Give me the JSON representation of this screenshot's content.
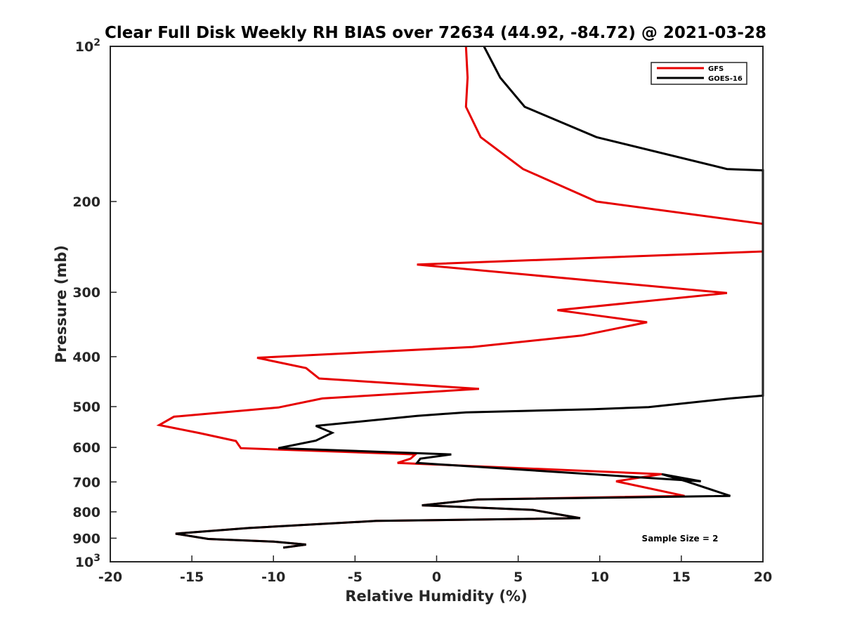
{
  "chart_data": {
    "type": "line",
    "title": "Clear Full Disk Weekly RH BIAS over 72634 (44.92, -84.72) @ 2021-03-28",
    "xlabel": "Relative Humidity (%)",
    "ylabel": "Pressure (mb)",
    "xlim": [
      -20,
      20
    ],
    "ylim": [
      100,
      1000
    ],
    "yscale": "log",
    "y_reversed": true,
    "grid": false,
    "x_ticks": [
      -20,
      -15,
      -10,
      -5,
      0,
      5,
      10,
      15,
      20
    ],
    "x_tick_labels": [
      "-20",
      "-15",
      "-10",
      "-5",
      "0",
      "5",
      "10",
      "15",
      "20"
    ],
    "y_ticks": [
      200,
      300,
      400,
      500,
      600,
      700,
      800,
      900
    ],
    "y_tick_labels": [
      "200",
      "300",
      "400",
      "500",
      "600",
      "700",
      "800",
      "900"
    ],
    "y_pow_ticks": [
      {
        "value": 100,
        "base": "10",
        "exp": "2"
      },
      {
        "value": 1000,
        "base": "10",
        "exp": "3"
      }
    ],
    "legend_position": "top-right",
    "series": [
      {
        "name": "GFS",
        "color": "#e60000",
        "points": [
          [
            1.8,
            100
          ],
          [
            1.9,
            115
          ],
          [
            1.8,
            131
          ],
          [
            2.7,
            150
          ],
          [
            5.3,
            173
          ],
          [
            9.8,
            200
          ],
          [
            20.0,
            221
          ],
          [
            20.0,
            250
          ],
          [
            -1.2,
            265
          ],
          [
            17.8,
            301
          ],
          [
            7.4,
            325
          ],
          [
            12.9,
            343
          ],
          [
            8.9,
            364
          ],
          [
            2.2,
            383
          ],
          [
            -11.0,
            402
          ],
          [
            -8.0,
            421
          ],
          [
            -7.2,
            441
          ],
          [
            2.6,
            462
          ],
          [
            -7.0,
            482
          ],
          [
            -9.7,
            502
          ],
          [
            -16.1,
            523
          ],
          [
            -17.0,
            543
          ],
          [
            -14.5,
            563
          ],
          [
            -12.3,
            583
          ],
          [
            -12.0,
            602
          ],
          [
            -1.3,
            619
          ],
          [
            -1.6,
            631
          ],
          [
            -2.4,
            643
          ],
          [
            13.8,
            676
          ],
          [
            11.0,
            698
          ],
          [
            15.2,
            745
          ],
          [
            2.5,
            757
          ],
          [
            -0.9,
            777
          ],
          [
            5.9,
            793
          ],
          [
            8.8,
            823
          ],
          [
            -3.7,
            833
          ],
          [
            -11.5,
            860
          ],
          [
            -16.0,
            882
          ],
          [
            -14.0,
            903
          ],
          [
            -10.0,
            914
          ],
          [
            -8.0,
            926
          ],
          [
            -9.4,
            939
          ]
        ]
      },
      {
        "name": "GOES-16",
        "color": "#000000",
        "points": [
          [
            2.9,
            100
          ],
          [
            3.9,
            115
          ],
          [
            5.4,
            131
          ],
          [
            9.8,
            150
          ],
          [
            17.8,
            173
          ],
          [
            20.0,
            174
          ],
          [
            20.0,
            476
          ],
          [
            18.0,
            482
          ],
          [
            13.0,
            501
          ],
          [
            9.6,
            506
          ],
          [
            1.8,
            513
          ],
          [
            -1.2,
            521
          ],
          [
            -7.4,
            545
          ],
          [
            -6.4,
            562
          ],
          [
            -7.4,
            582
          ],
          [
            -9.7,
            602
          ],
          [
            0.9,
            619
          ],
          [
            -1.0,
            631
          ],
          [
            -1.2,
            643
          ],
          [
            16.2,
            698
          ],
          [
            13.8,
            676
          ],
          [
            15.3,
            698
          ],
          [
            18.0,
            745
          ],
          [
            2.5,
            757
          ],
          [
            -0.9,
            777
          ],
          [
            5.9,
            793
          ],
          [
            8.8,
            823
          ],
          [
            -3.7,
            833
          ],
          [
            -11.5,
            860
          ],
          [
            -16.0,
            882
          ],
          [
            -14.0,
            903
          ],
          [
            -10.0,
            914
          ],
          [
            -8.0,
            926
          ],
          [
            -9.4,
            939
          ]
        ]
      }
    ],
    "annotations": [
      {
        "text": "Sample Size = 2",
        "at": [
          16,
          900
        ]
      }
    ]
  }
}
